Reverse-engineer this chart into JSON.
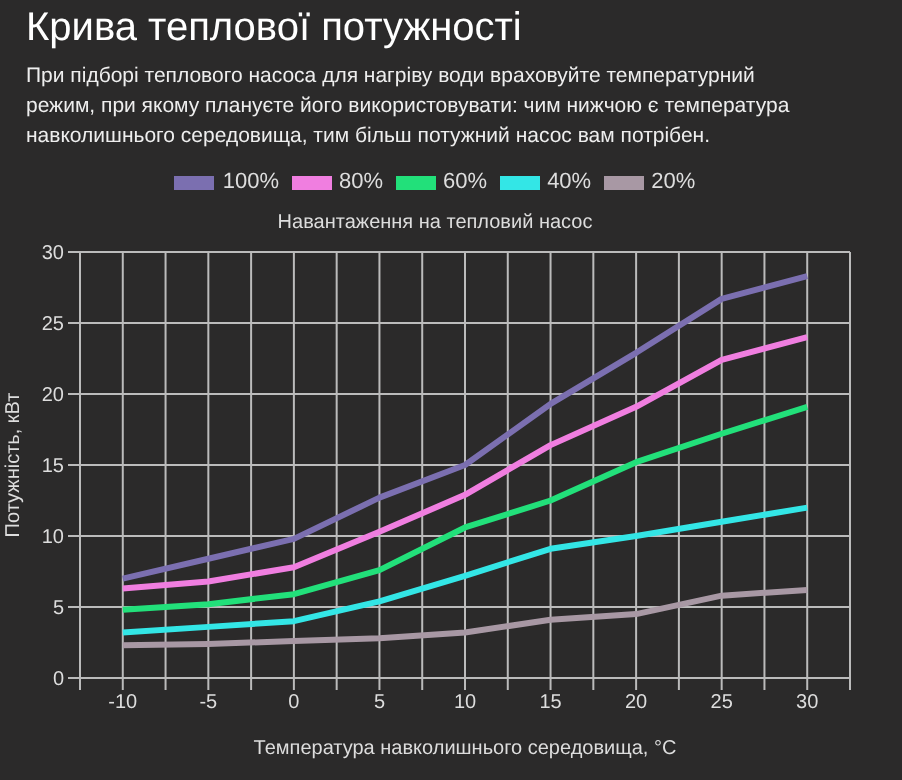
{
  "chart_data": {
    "type": "line",
    "title": "Крива теплової потужності",
    "subtitle": "При підборі теплового насоса для нагріву води враховуйте температурний режим, при якому плануєте його використовувати: чим нижчою є температура навколишнього середовища, тим більш потужний насос вам потрібен.",
    "legend_title": "Навантаження на тепловий насос",
    "xlabel": "Температура навколишнього середовища, °C",
    "ylabel": "Потужність, кВт",
    "x": [
      -10,
      -5,
      0,
      5,
      10,
      15,
      20,
      25,
      30
    ],
    "series": [
      {
        "name": "100%",
        "color": "#7b6fb0",
        "values": [
          7.0,
          8.4,
          9.8,
          12.7,
          15.0,
          19.3,
          22.9,
          26.7,
          28.3
        ]
      },
      {
        "name": "80%",
        "color": "#f07ee0",
        "values": [
          6.3,
          6.8,
          7.8,
          10.3,
          12.9,
          16.4,
          19.1,
          22.4,
          24.0
        ]
      },
      {
        "name": "60%",
        "color": "#22e07a",
        "values": [
          4.8,
          5.2,
          5.9,
          7.6,
          10.6,
          12.5,
          15.2,
          17.2,
          19.1
        ]
      },
      {
        "name": "40%",
        "color": "#33e6e6",
        "values": [
          3.2,
          3.6,
          4.0,
          5.4,
          7.2,
          9.1,
          10.0,
          11.0,
          12.0
        ]
      },
      {
        "name": "20%",
        "color": "#a898a4",
        "values": [
          2.3,
          2.4,
          2.6,
          2.8,
          3.2,
          4.1,
          4.5,
          5.8,
          6.2
        ]
      }
    ],
    "xlim": [
      -12.5,
      32.5
    ],
    "xticks": [
      {
        "value": -12.5,
        "label": null
      },
      -10,
      {
        "value": -7.5,
        "label": null
      },
      -5,
      {
        "value": -2.5,
        "label": null
      },
      0,
      {
        "value": 2.5,
        "label": null
      },
      5,
      {
        "value": 7.5,
        "label": null
      },
      10,
      {
        "value": 12.5,
        "label": null
      },
      15,
      {
        "value": 17.5,
        "label": null
      },
      20,
      {
        "value": 22.5,
        "label": null
      },
      25,
      {
        "value": 27.5,
        "label": null
      },
      30,
      {
        "value": 32.5,
        "label": null
      }
    ],
    "ylim": [
      0,
      30
    ],
    "yticks": [
      0,
      5,
      10,
      15,
      20,
      25,
      30
    ],
    "grid": true,
    "legend": "top"
  }
}
